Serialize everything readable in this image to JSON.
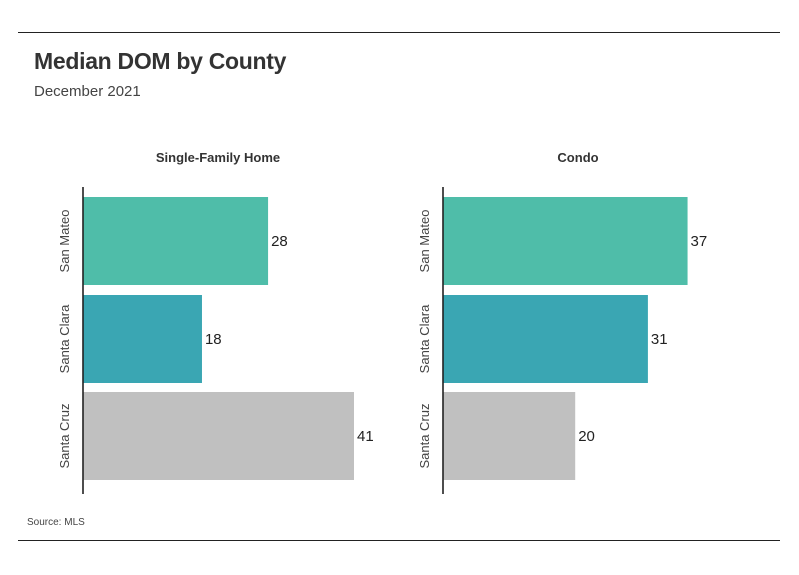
{
  "title": "Median DOM by County",
  "subtitle": "December 2021",
  "source": "Source: MLS",
  "colors": {
    "San Mateo": "#4fbda9",
    "Santa Clara": "#3aa6b3",
    "Santa Cruz": "#c0c0c0",
    "axis": "#222222"
  },
  "chart_data": [
    {
      "type": "bar",
      "orientation": "horizontal",
      "title": "Single-Family Home",
      "categories": [
        "San Mateo",
        "Santa Clara",
        "Santa Cruz"
      ],
      "values": [
        28,
        18,
        41
      ],
      "xlim": [
        0,
        41
      ],
      "grid": false
    },
    {
      "type": "bar",
      "orientation": "horizontal",
      "title": "Condo",
      "categories": [
        "San Mateo",
        "Santa Clara",
        "Santa Cruz"
      ],
      "values": [
        37,
        31,
        20
      ],
      "xlim": [
        0,
        41
      ],
      "grid": false
    }
  ]
}
